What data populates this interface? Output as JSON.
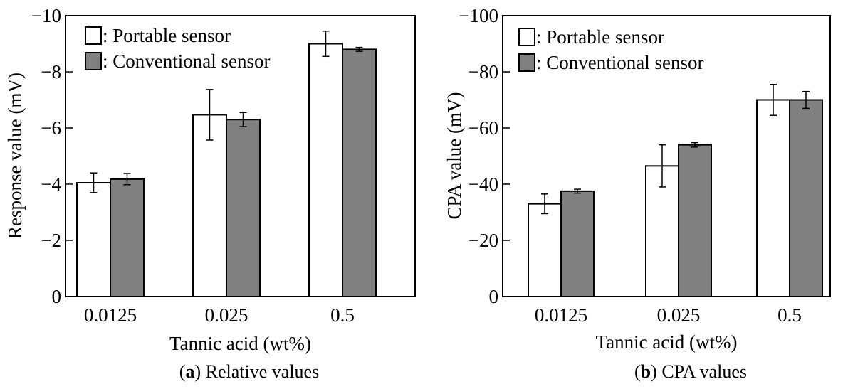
{
  "figure": {
    "captions": [
      {
        "label": "a",
        "text": "Relative values"
      },
      {
        "label": "b",
        "text": "CPA values"
      }
    ]
  },
  "colors": {
    "portable_fill": "#ffffff",
    "conventional_fill": "#808080",
    "stroke": "#000000"
  },
  "chart_data": [
    {
      "type": "bar",
      "title": "",
      "xlabel": "Tannic acid (wt%)",
      "ylabel": "Response value (mV)",
      "categories": [
        "0.0125",
        "0.025",
        "0.5"
      ],
      "ylim": [
        0,
        -10
      ],
      "yticks": [
        0,
        -2,
        -4,
        -6,
        -8,
        -10
      ],
      "ytick_labels": [
        "0",
        "−2",
        "−4",
        "−6",
        "−8",
        "−10"
      ],
      "legend_position": "top-left",
      "series": [
        {
          "name": ": Portable sensor",
          "values": [
            -4.05,
            -6.47,
            -9.0
          ],
          "errors": [
            0.35,
            0.9,
            0.45
          ]
        },
        {
          "name": ": Conventional sensor",
          "values": [
            -4.18,
            -6.3,
            -8.8
          ],
          "errors": [
            0.2,
            0.25,
            0.07
          ]
        }
      ]
    },
    {
      "type": "bar",
      "title": "",
      "xlabel": "Tannic acid (wt%)",
      "ylabel": "CPA value (mV)",
      "categories": [
        "0.0125",
        "0.025",
        "0.5"
      ],
      "ylim": [
        0,
        -100
      ],
      "yticks": [
        0,
        -20,
        -40,
        -60,
        -80,
        -100
      ],
      "ytick_labels": [
        "0",
        "−20",
        "−40",
        "−60",
        "−80",
        "−100"
      ],
      "legend_position": "top-left",
      "series": [
        {
          "name": ": Portable sensor",
          "values": [
            -33.0,
            -46.5,
            -70.0
          ],
          "errors": [
            3.5,
            7.5,
            5.5
          ]
        },
        {
          "name": ": Conventional sensor",
          "values": [
            -37.5,
            -54.0,
            -70.0
          ],
          "errors": [
            0.7,
            0.8,
            3.0
          ]
        }
      ]
    }
  ]
}
